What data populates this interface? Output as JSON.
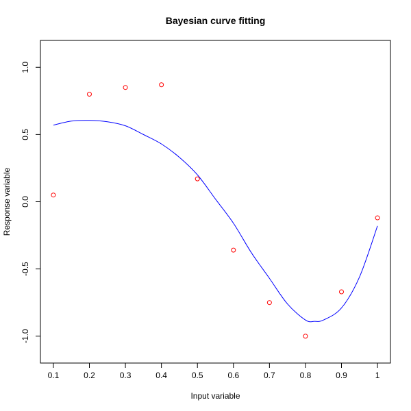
{
  "chart_data": {
    "type": "scatter",
    "title": "Bayesian curve fitting",
    "xlabel": "Input variable",
    "ylabel": "Response variable",
    "xlim": [
      0.064,
      1.036
    ],
    "ylim": [
      -1.2,
      1.2
    ],
    "x_ticks": [
      0.1,
      0.2,
      0.3,
      0.4,
      0.5,
      0.6,
      0.7,
      0.8,
      0.9,
      1.0
    ],
    "x_tick_labels": [
      "0.1",
      "0.2",
      "0.3",
      "0.4",
      "0.5",
      "0.6",
      "0.7",
      "0.8",
      "0.9",
      "1"
    ],
    "y_ticks": [
      -1.0,
      -0.5,
      0.0,
      0.5,
      1.0
    ],
    "y_tick_labels": [
      "-1.0",
      "-0.5",
      "0.0",
      "0.5",
      "1.0"
    ],
    "grid": false,
    "series": [
      {
        "type": "scatter",
        "marker": "open-circle",
        "color": "#ff0000",
        "x": [
          0.1,
          0.2,
          0.3,
          0.4,
          0.5,
          0.6,
          0.7,
          0.8,
          0.9,
          1.0
        ],
        "y": [
          0.05,
          0.8,
          0.85,
          0.87,
          0.17,
          -0.36,
          -0.75,
          -1.0,
          -0.67,
          -0.12
        ]
      },
      {
        "type": "line",
        "color": "#0000ff",
        "x": [
          0.1,
          0.15,
          0.2,
          0.25,
          0.3,
          0.35,
          0.4,
          0.45,
          0.5,
          0.55,
          0.6,
          0.65,
          0.7,
          0.75,
          0.8,
          0.825,
          0.85,
          0.9,
          0.95,
          1.0
        ],
        "y": [
          0.57,
          0.6,
          0.605,
          0.595,
          0.565,
          0.5,
          0.43,
          0.33,
          0.2,
          0.02,
          -0.16,
          -0.38,
          -0.57,
          -0.76,
          -0.88,
          -0.89,
          -0.88,
          -0.79,
          -0.56,
          -0.18
        ]
      }
    ]
  }
}
